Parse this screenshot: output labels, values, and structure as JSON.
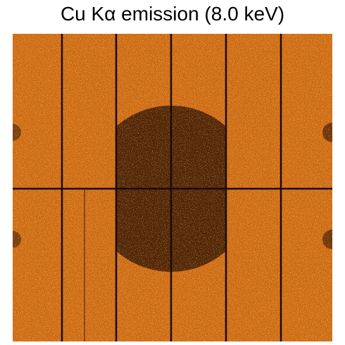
{
  "title": "Cu Kα emission (8.0 keV)"
}
